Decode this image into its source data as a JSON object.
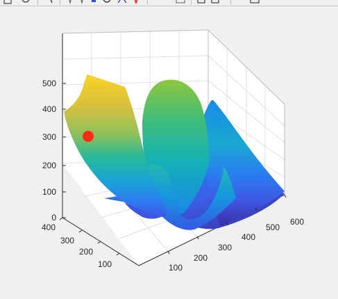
{
  "toolbar": {
    "icons": [
      "save-icon",
      "print-icon",
      "edit-plot-icon",
      "insert-colorbar-icon",
      "rotate-icon",
      "datatip-icon",
      "brush-icon",
      "link-icon",
      "zoom-in-icon",
      "zoom-out-icon",
      "pan-icon"
    ]
  },
  "chart_data": {
    "type": "surface",
    "title": "",
    "xlabel": "",
    "ylabel": "",
    "zlabel": "",
    "xlim": [
      0,
      600
    ],
    "ylim": [
      0,
      400
    ],
    "zlim": [
      0,
      500
    ],
    "x_ticks": [
      "100",
      "200",
      "300",
      "400",
      "500",
      "600"
    ],
    "y_ticks": [
      "100",
      "200",
      "300",
      "400"
    ],
    "z_ticks": [
      "0",
      "100",
      "200",
      "300",
      "400",
      "500"
    ],
    "grid": true,
    "colormap": "parula",
    "marker": {
      "type": "point",
      "color": "#ff2a12",
      "x": 0,
      "y": 340,
      "z": 300
    }
  }
}
